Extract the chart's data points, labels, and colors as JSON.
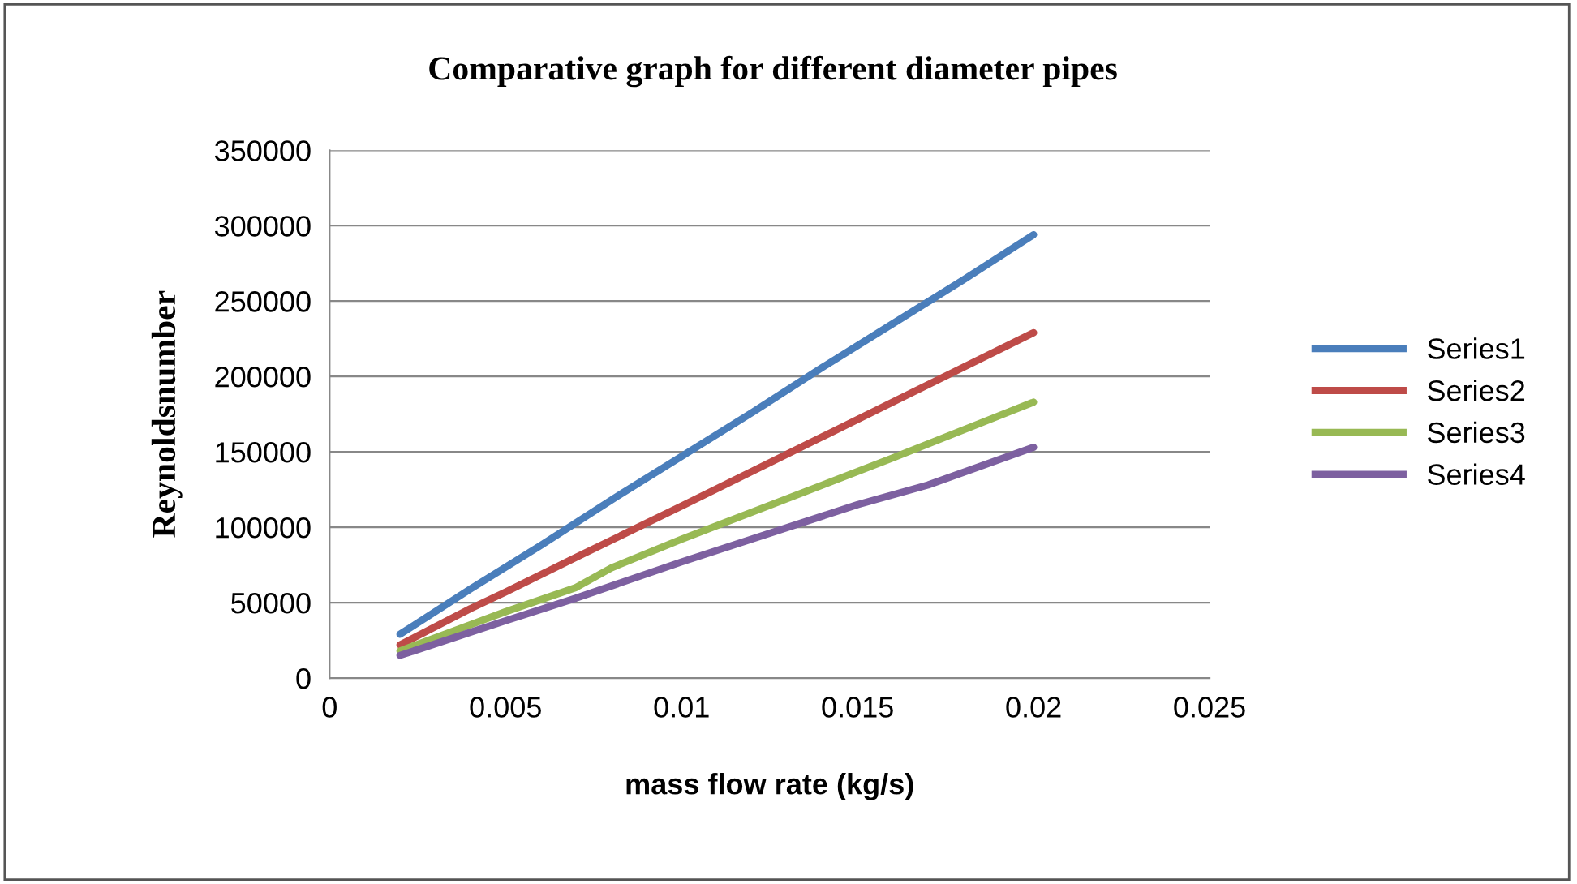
{
  "chart_data": {
    "type": "line",
    "title": "Comparative graph for different diameter pipes",
    "xlabel": "mass flow rate (kg/s)",
    "ylabel": "Reynoldsnumber",
    "series": [
      {
        "name": "Series1",
        "color": "#4a7ebb",
        "x": [
          0.002,
          0.004,
          0.006,
          0.008,
          0.01,
          0.012,
          0.014,
          0.016,
          0.018,
          0.02
        ],
        "values": [
          29000,
          59000,
          88000,
          118000,
          147000,
          176000,
          206000,
          235000,
          264000,
          294000
        ]
      },
      {
        "name": "Series2",
        "color": "#be4b48",
        "x": [
          0.002,
          0.004,
          0.005,
          0.007,
          0.01,
          0.014,
          0.016,
          0.018,
          0.02
        ],
        "values": [
          22000,
          46000,
          57000,
          80000,
          114000,
          160000,
          183000,
          206000,
          229000
        ]
      },
      {
        "name": "Series3",
        "color": "#98b954",
        "x": [
          0.002,
          0.005,
          0.007,
          0.008,
          0.01,
          0.014,
          0.016,
          0.02
        ],
        "values": [
          18000,
          44000,
          60000,
          73000,
          92000,
          128000,
          146000,
          183000
        ]
      },
      {
        "name": "Series4",
        "color": "#7d60a0",
        "x": [
          0.002,
          0.005,
          0.007,
          0.01,
          0.015,
          0.017,
          0.02
        ],
        "values": [
          15000,
          38000,
          53000,
          77000,
          115000,
          128000,
          153000
        ]
      }
    ],
    "xlim": [
      0,
      0.025
    ],
    "xticks": [
      0,
      0.005,
      0.01,
      0.015,
      0.02,
      0.025
    ],
    "ylim": [
      0,
      350000
    ],
    "yticks": [
      0,
      50000,
      100000,
      150000,
      200000,
      250000,
      300000,
      350000
    ],
    "grid": "y",
    "legend": "right",
    "marker": "none",
    "line_style": "solid"
  }
}
